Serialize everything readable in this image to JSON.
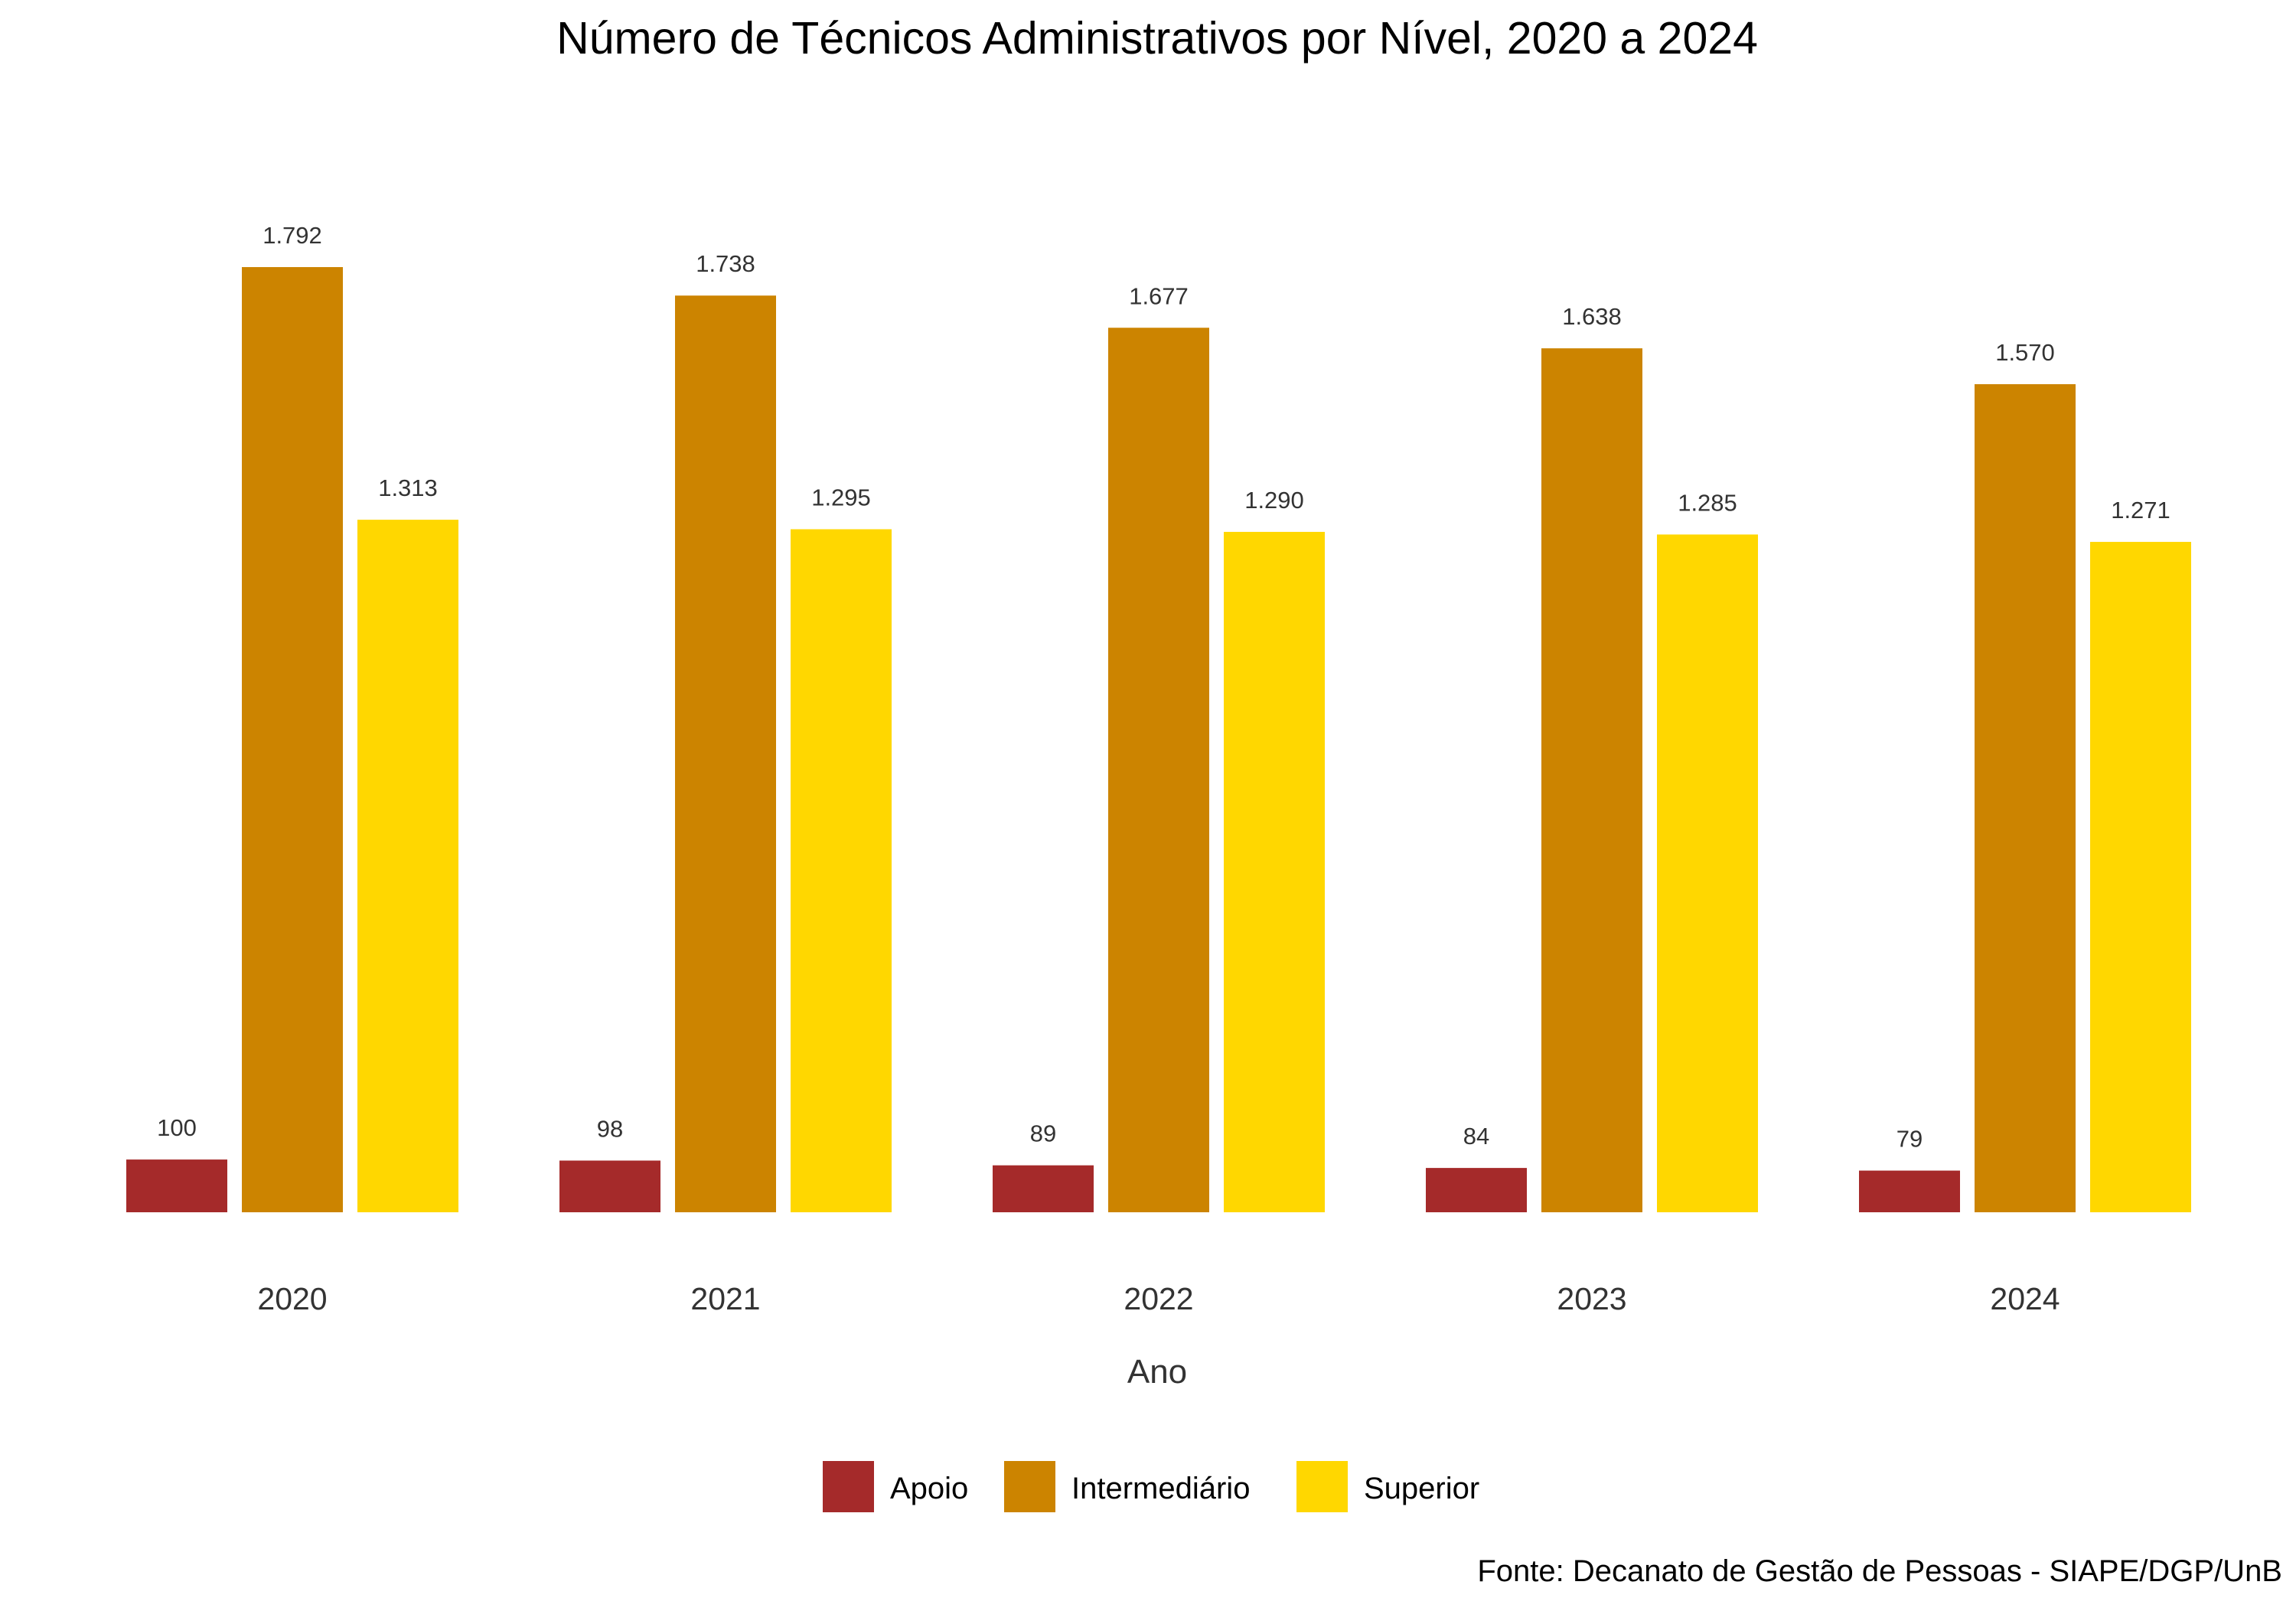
{
  "chart_data": {
    "type": "bar",
    "title": "Número de Técnicos Administrativos por Nível, 2020 a 2024",
    "xlabel": "Ano",
    "ylabel": "",
    "caption": "Fonte: Decanato de Gestão de Pessoas - SIAPE/DGP/UnB",
    "categories": [
      "2020",
      "2021",
      "2022",
      "2023",
      "2024"
    ],
    "series": [
      {
        "name": "Apoio",
        "color": "#A52A2A",
        "values": [
          100,
          98,
          89,
          84,
          79
        ],
        "labels": [
          "100",
          "98",
          "89",
          "84",
          "79"
        ]
      },
      {
        "name": "Intermediário",
        "color": "#CC8400",
        "values": [
          1792,
          1738,
          1677,
          1638,
          1570
        ],
        "labels": [
          "1.792",
          "1.738",
          "1.677",
          "1.638",
          "1.570"
        ]
      },
      {
        "name": "Superior",
        "color": "#FFD700",
        "values": [
          1313,
          1295,
          1290,
          1285,
          1271
        ],
        "labels": [
          "1.313",
          "1.295",
          "1.290",
          "1.285",
          "1.271"
        ]
      }
    ],
    "ylim": [
      0,
      1792
    ],
    "grid": false,
    "legend": "bottom"
  }
}
